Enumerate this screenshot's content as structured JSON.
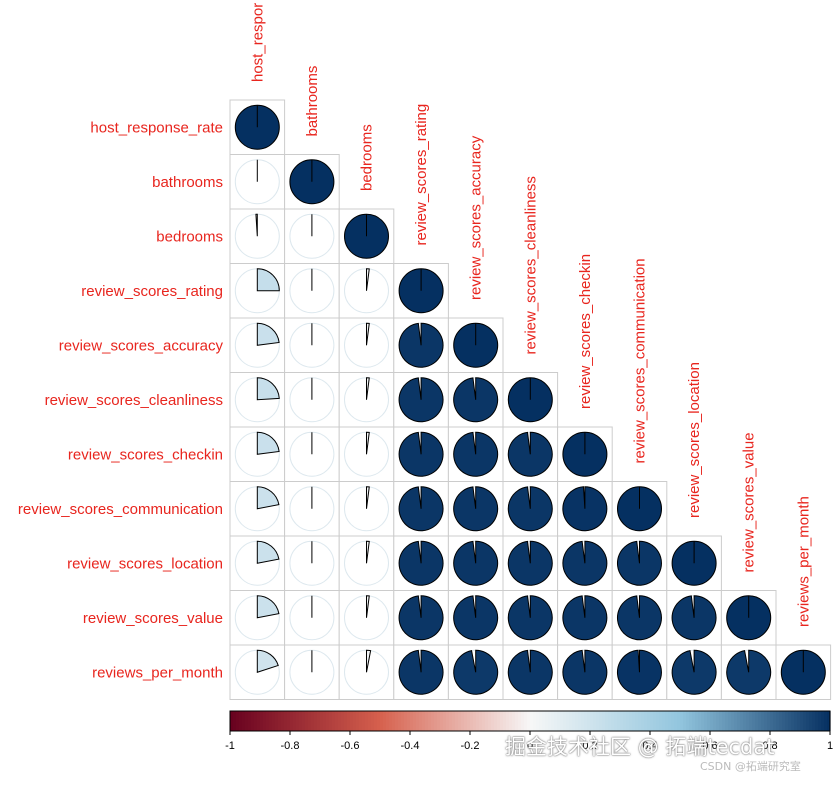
{
  "chart_data": {
    "type": "heatmap",
    "style": "correlation-plot-pie-lower-triangle",
    "variables": [
      "host_response_rate",
      "bathrooms",
      "bedrooms",
      "review_scores_rating",
      "review_scores_accuracy",
      "review_scores_cleanliness",
      "review_scores_checkin",
      "review_scores_communication",
      "review_scores_location",
      "review_scores_value",
      "reviews_per_month"
    ],
    "column_label_display": [
      "host_respor",
      "bathrooms",
      "bedrooms",
      "review_scores_rating",
      "review_scores_accuracy",
      "review_scores_cleanliness",
      "review_scores_checkin",
      "review_scores_communication",
      "review_scores_location",
      "review_scores_value",
      "reviews_per_month"
    ],
    "correlations": [
      [
        1
      ],
      [
        0.0,
        1
      ],
      [
        -0.01,
        0.0,
        1
      ],
      [
        0.25,
        0.0,
        0.02,
        1
      ],
      [
        0.23,
        0.0,
        0.02,
        0.98,
        1
      ],
      [
        0.24,
        0.0,
        0.02,
        0.98,
        0.98,
        1
      ],
      [
        0.23,
        0.0,
        0.02,
        0.98,
        0.98,
        0.98,
        1
      ],
      [
        0.22,
        0.0,
        0.02,
        0.98,
        0.98,
        0.98,
        0.99,
        1
      ],
      [
        0.22,
        0.0,
        0.02,
        0.98,
        0.98,
        0.98,
        0.98,
        0.98,
        1
      ],
      [
        0.22,
        0.0,
        0.02,
        0.98,
        0.98,
        0.98,
        0.98,
        0.98,
        0.98,
        1
      ],
      [
        0.2,
        0.0,
        0.03,
        0.98,
        0.97,
        0.98,
        0.98,
        0.99,
        0.97,
        0.97,
        1
      ]
    ],
    "colorbar": {
      "range": [
        -1,
        1
      ],
      "tick_labels": [
        "-1",
        "-0.8",
        "-0.6",
        "-0.4",
        "-0.2",
        "0",
        "0.2",
        "0.4",
        "0.6",
        "0.8",
        "1"
      ],
      "colors": {
        "neg1": "#67001f",
        "neg05": "#d6604d",
        "zero": "#f7f7f7",
        "pos05": "#92c5de",
        "pos1": "#053061"
      }
    },
    "label_color": "#e8251e",
    "grid": true,
    "legend": "bottom"
  },
  "watermark": {
    "main": "掘金技术社区 @ 拓端tecdat",
    "sub": "CSDN @拓端研究室"
  }
}
